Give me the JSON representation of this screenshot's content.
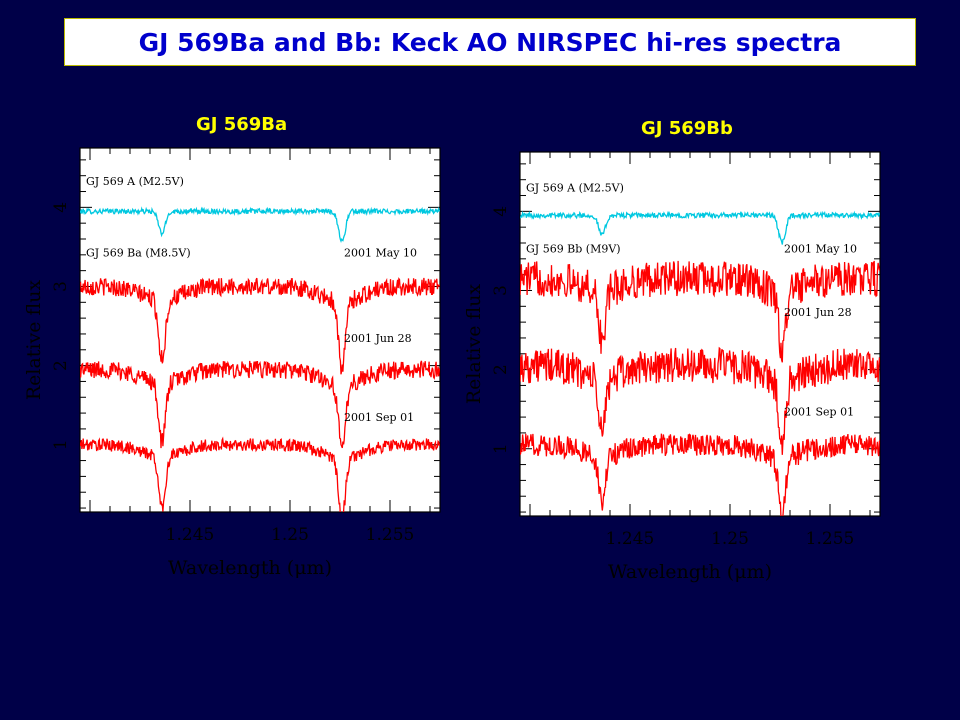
{
  "slide": {
    "title": "GJ 569Ba and Bb: Keck AO NIRSPEC hi-res spectra"
  },
  "colors": {
    "background": "#000048",
    "title_text": "#0000cc",
    "title_box": "#ffffff",
    "panel_title": "#ffff00",
    "plot_bg": "#ffffff",
    "reference_spectrum": "#00c8e0",
    "object_spectrum": "#ff0000"
  },
  "chart_data": [
    {
      "type": "line",
      "title": "GJ 569Ba",
      "xlabel": "Wavelength (μm)",
      "ylabel": "Relative flux",
      "xlim": [
        1.2395,
        1.2575
      ],
      "ylim": [
        0.15,
        4.75
      ],
      "xticks": [
        1.245,
        1.25,
        1.255
      ],
      "yticks": [
        1,
        2,
        3,
        4
      ],
      "grid": false,
      "absorption_lines_um": [
        1.2436,
        1.2526
      ],
      "series": [
        {
          "name": "GJ 569 A (M2.5V)",
          "role": "reference",
          "continuum": 3.95,
          "noise": 0.02,
          "line_depths": [
            0.28,
            0.38
          ]
        },
        {
          "name": "2001 May 10",
          "role": "object",
          "continuum": 3.0,
          "noise": 0.07,
          "line_depths": [
            0.75,
            0.85
          ]
        },
        {
          "name": "2001 Jun 28",
          "role": "object",
          "continuum": 1.95,
          "noise": 0.07,
          "line_depths": [
            0.75,
            0.85
          ]
        },
        {
          "name": "2001 Sep 01",
          "role": "object",
          "continuum": 1.0,
          "noise": 0.05,
          "line_depths": [
            0.65,
            0.75
          ]
        }
      ],
      "annotations": [
        {
          "text": "GJ 569 A (M2.5V)",
          "x": 1.2398,
          "y": 4.28
        },
        {
          "text": "GJ 569 Ba (M8.5V)",
          "x": 1.2398,
          "y": 3.38
        },
        {
          "text": "2001 May 10",
          "x": 1.2527,
          "y": 3.38
        },
        {
          "text": "2001 Jun 28",
          "x": 1.2527,
          "y": 2.3
        },
        {
          "text": "2001 Sep 01",
          "x": 1.2527,
          "y": 1.3
        }
      ]
    },
    {
      "type": "line",
      "title": "GJ 569Bb",
      "xlabel": "Wavelength (μm)",
      "ylabel": "Relative flux",
      "xlim": [
        1.2395,
        1.2575
      ],
      "ylim": [
        0.15,
        4.75
      ],
      "xticks": [
        1.245,
        1.25,
        1.255
      ],
      "yticks": [
        1,
        2,
        3,
        4
      ],
      "grid": false,
      "absorption_lines_um": [
        1.2436,
        1.2526
      ],
      "series": [
        {
          "name": "GJ 569 A (M2.5V)",
          "role": "reference",
          "continuum": 3.95,
          "noise": 0.02,
          "line_depths": [
            0.25,
            0.35
          ]
        },
        {
          "name": "2001 May 10",
          "role": "object",
          "continuum": 3.15,
          "noise": 0.14,
          "line_depths": [
            0.65,
            0.75
          ]
        },
        {
          "name": "2001 Jun 28",
          "role": "object",
          "continuum": 2.05,
          "noise": 0.14,
          "line_depths": [
            0.7,
            0.8
          ]
        },
        {
          "name": "2001 Sep 01",
          "role": "object",
          "continuum": 1.05,
          "noise": 0.09,
          "line_depths": [
            0.6,
            0.7
          ]
        }
      ],
      "annotations": [
        {
          "text": "GJ 569 A (M2.5V)",
          "x": 1.2398,
          "y": 4.25
        },
        {
          "text": "GJ 569 Bb (M9V)",
          "x": 1.2398,
          "y": 3.48
        },
        {
          "text": "2001 May 10",
          "x": 1.2527,
          "y": 3.48
        },
        {
          "text": "2001 Jun 28",
          "x": 1.2527,
          "y": 2.68
        },
        {
          "text": "2001 Sep 01",
          "x": 1.2527,
          "y": 1.42
        }
      ]
    }
  ]
}
